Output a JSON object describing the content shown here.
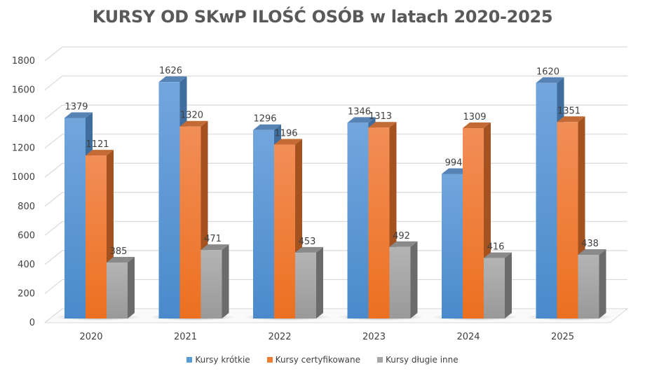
{
  "chart_data": {
    "type": "bar",
    "title": "KURSY OD SKwP ILOŚĆ OSÓB w latach 2020-2025",
    "categories": [
      "2020",
      "2021",
      "2022",
      "2023",
      "2024",
      "2025"
    ],
    "series": [
      {
        "name": "Kursy krótkie",
        "color": "#5B9BD5",
        "values": [
          1379,
          1626,
          1296,
          1346,
          994,
          1620
        ]
      },
      {
        "name": "Kursy certyfikowane",
        "color": "#ED7D31",
        "values": [
          1121,
          1320,
          1196,
          1313,
          1309,
          1351
        ]
      },
      {
        "name": "Kursy długie inne",
        "color": "#A5A5A5",
        "values": [
          385,
          471,
          453,
          492,
          416,
          438
        ]
      }
    ],
    "xlabel": "",
    "ylabel": "",
    "ylim": [
      0,
      1800
    ],
    "yticks": [
      "0",
      "200",
      "400",
      "600",
      "800",
      "1000",
      "1200",
      "1400",
      "1600",
      "1800"
    ],
    "grid": true,
    "legend_position": "bottom",
    "style": "3d-column"
  }
}
